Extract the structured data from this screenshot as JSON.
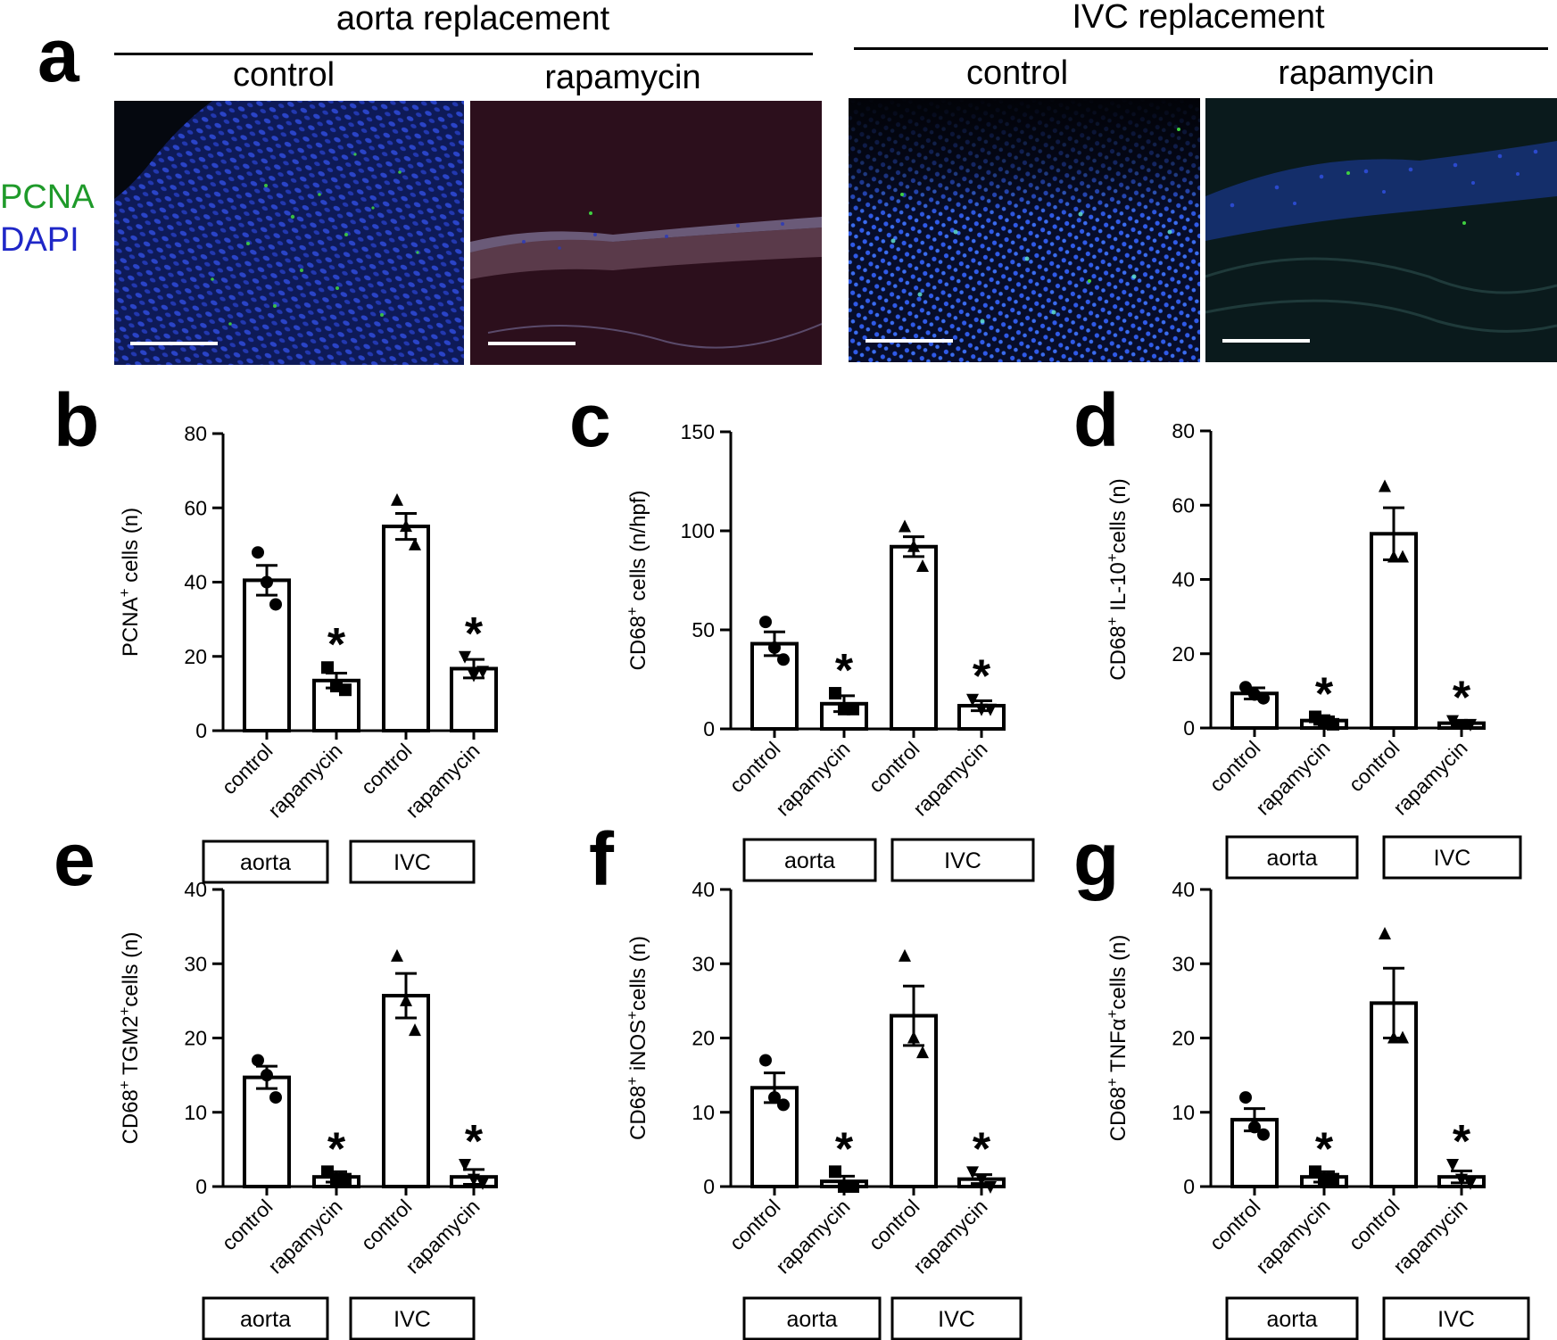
{
  "panel_a": {
    "label": "a",
    "groups": [
      {
        "title": "aorta replacement",
        "conditions": [
          "control",
          "rapamycin"
        ]
      },
      {
        "title": "IVC replacement",
        "conditions": [
          "control",
          "rapamycin"
        ]
      }
    ],
    "stain_legend": [
      {
        "text": "PCNA",
        "color": "#1f9a2a"
      },
      {
        "text": "DAPI",
        "color": "#1f27c7"
      }
    ]
  },
  "colors": {
    "bar_fill": "#ffffff",
    "bar_stroke": "#000000",
    "marker": "#000000"
  },
  "chart_data": [
    {
      "panel": "b",
      "type": "bar",
      "categories": [
        "control",
        "rapamycin",
        "control",
        "rapamycin"
      ],
      "groups": [
        "aorta",
        "IVC"
      ],
      "ylabel": "PCNA⁺ cells (n)",
      "ylim": [
        0,
        80
      ],
      "yticks": [
        0,
        20,
        40,
        60,
        80
      ],
      "values": [
        40.5,
        13.5,
        55,
        16.7
      ],
      "sem": [
        4,
        2,
        3.5,
        2.5
      ],
      "points": [
        [
          48,
          40,
          34
        ],
        [
          17,
          12,
          11
        ],
        [
          62,
          55,
          50
        ],
        [
          20,
          15,
          16
        ]
      ],
      "markers": [
        "circle",
        "square",
        "triangle",
        "triangle-down"
      ],
      "significance": [
        "",
        "*",
        "",
        "*"
      ]
    },
    {
      "panel": "c",
      "type": "bar",
      "categories": [
        "control",
        "rapamycin",
        "control",
        "rapamycin"
      ],
      "groups": [
        "aorta",
        "IVC"
      ],
      "ylabel": "CD68⁺ cells (n/hpf)",
      "ylim": [
        0,
        150
      ],
      "yticks": [
        0,
        50,
        100,
        150
      ],
      "values": [
        43,
        12.7,
        92,
        11.7
      ],
      "sem": [
        6,
        4,
        5,
        2.5
      ],
      "points": [
        [
          54,
          41,
          35
        ],
        [
          18,
          10,
          10
        ],
        [
          102,
          92,
          82
        ],
        [
          15,
          10,
          10
        ]
      ],
      "markers": [
        "circle",
        "square",
        "triangle",
        "triangle-down"
      ],
      "significance": [
        "",
        "*",
        "",
        "*"
      ]
    },
    {
      "panel": "d",
      "type": "bar",
      "categories": [
        "control",
        "rapamycin",
        "control",
        "rapamycin"
      ],
      "groups": [
        "aorta",
        "IVC"
      ],
      "ylabel": "CD68⁺ IL-10⁺cells (n)",
      "ylim": [
        0,
        80
      ],
      "yticks": [
        0,
        20,
        40,
        60,
        80
      ],
      "values": [
        9.3,
        2,
        52.3,
        1.3
      ],
      "sem": [
        1.5,
        1,
        7,
        0.7
      ],
      "points": [
        [
          11,
          9,
          8
        ],
        [
          3,
          2,
          1
        ],
        [
          65,
          46,
          46
        ],
        [
          2,
          1,
          1
        ]
      ],
      "markers": [
        "circle",
        "square",
        "triangle",
        "triangle-down"
      ],
      "significance": [
        "",
        "*",
        "",
        "*"
      ]
    },
    {
      "panel": "e",
      "type": "bar",
      "categories": [
        "control",
        "rapamycin",
        "control",
        "rapamycin"
      ],
      "groups": [
        "aorta",
        "IVC"
      ],
      "ylabel": "CD68⁺ TGM2⁺cells (n)",
      "ylim": [
        0,
        40
      ],
      "yticks": [
        0,
        10,
        20,
        30,
        40
      ],
      "values": [
        14.7,
        1.3,
        25.7,
        1.3
      ],
      "sem": [
        1.5,
        0.7,
        3,
        1
      ],
      "points": [
        [
          17,
          15,
          12
        ],
        [
          2,
          1,
          1
        ],
        [
          31,
          25,
          21
        ],
        [
          3,
          1,
          0.5
        ]
      ],
      "markers": [
        "circle",
        "square",
        "triangle",
        "triangle-down"
      ],
      "significance": [
        "",
        "*",
        "",
        "*"
      ]
    },
    {
      "panel": "f",
      "type": "bar",
      "categories": [
        "control",
        "rapamycin",
        "control",
        "rapamycin"
      ],
      "groups": [
        "aorta",
        "IVC"
      ],
      "ylabel": "CD68⁺ iNOS⁺cells (n)",
      "ylim": [
        0,
        40
      ],
      "yticks": [
        0,
        10,
        20,
        30,
        40
      ],
      "values": [
        13.3,
        0.7,
        23,
        1
      ],
      "sem": [
        2,
        0.7,
        4,
        0.6
      ],
      "points": [
        [
          17,
          12,
          11
        ],
        [
          2,
          0,
          0
        ],
        [
          31,
          20,
          18
        ],
        [
          2,
          1,
          0
        ]
      ],
      "markers": [
        "circle",
        "square",
        "triangle",
        "triangle-down"
      ],
      "significance": [
        "",
        "*",
        "",
        "*"
      ]
    },
    {
      "panel": "g",
      "type": "bar",
      "categories": [
        "control",
        "rapamycin",
        "control",
        "rapamycin"
      ],
      "groups": [
        "aorta",
        "IVC"
      ],
      "ylabel": "CD68⁺ TNFα⁺cells (n)",
      "ylim": [
        0,
        40
      ],
      "yticks": [
        0,
        10,
        20,
        30,
        40
      ],
      "values": [
        9,
        1.3,
        24.7,
        1.3
      ],
      "sem": [
        1.5,
        0.7,
        4.7,
        0.8
      ],
      "points": [
        [
          12,
          8,
          7
        ],
        [
          2,
          1,
          1
        ],
        [
          34,
          20,
          20
        ],
        [
          3,
          1,
          0.5
        ]
      ],
      "markers": [
        "circle",
        "square",
        "triangle",
        "triangle-down"
      ],
      "significance": [
        "",
        "*",
        "",
        "*"
      ]
    }
  ]
}
